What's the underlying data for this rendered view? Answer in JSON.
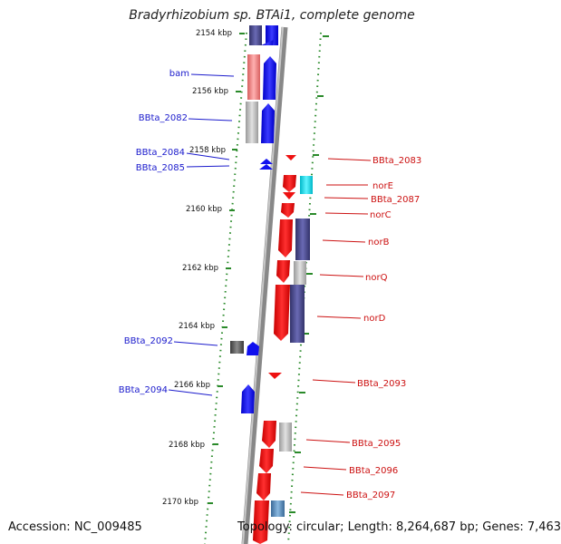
{
  "title": "Bradyrhizobium sp. BTAi1, complete genome",
  "footer": {
    "accession": "Accession: NC_009485",
    "stats": "Topology: circular; Length: 8,264,687 bp; Genes: 7,463"
  },
  "scale_labels": [
    "2154 kbp",
    "2156 kbp",
    "2158 kbp",
    "2160 kbp",
    "2162 kbp",
    "2164 kbp",
    "2166 kbp",
    "2168 kbp",
    "2170 kbp"
  ],
  "colors": {
    "forward": "#1010ee",
    "reverse": "#ee1111",
    "left_label": "#1a1acc",
    "right_label": "#cc1111",
    "tick": "#2a8a2a",
    "backbone": "#888888"
  },
  "genes_left": [
    {
      "name": "bam"
    },
    {
      "name": "BBta_2082"
    },
    {
      "name": "BBta_2084"
    },
    {
      "name": "BBta_2085"
    },
    {
      "name": "BBta_2092"
    },
    {
      "name": "BBta_2094"
    }
  ],
  "genes_right": [
    {
      "name": "BBta_2083"
    },
    {
      "name": "norE"
    },
    {
      "name": "BBta_2087"
    },
    {
      "name": "norC"
    },
    {
      "name": "norB"
    },
    {
      "name": "norQ"
    },
    {
      "name": "norD"
    },
    {
      "name": "BBta_2093"
    },
    {
      "name": "BBta_2095"
    },
    {
      "name": "BBta_2096"
    },
    {
      "name": "BBta_2097"
    }
  ]
}
